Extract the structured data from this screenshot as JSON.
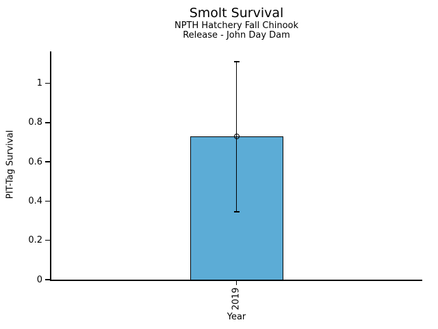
{
  "chart_data": {
    "type": "bar",
    "title": "Smolt Survival",
    "subtitle_lines": [
      "NPTH Hatchery Fall Chinook",
      "Release - John Day Dam"
    ],
    "xlabel": "Year",
    "ylabel": "PIT-Tag Survival",
    "categories": [
      "2019"
    ],
    "values": [
      0.73
    ],
    "error_low": [
      0.345
    ],
    "error_high": [
      1.11
    ],
    "yticks": [
      "0",
      "0.2",
      "0.4",
      "0.6",
      "0.8",
      "1"
    ],
    "ytick_values": [
      0,
      0.2,
      0.4,
      0.6,
      0.8,
      1
    ],
    "ylim": [
      0,
      1.163
    ],
    "grid": false,
    "legend": null,
    "marker": "open-circle",
    "bar_color": "#5CACD6",
    "bar_edge_color": "#000000",
    "error_color": "#000000"
  }
}
